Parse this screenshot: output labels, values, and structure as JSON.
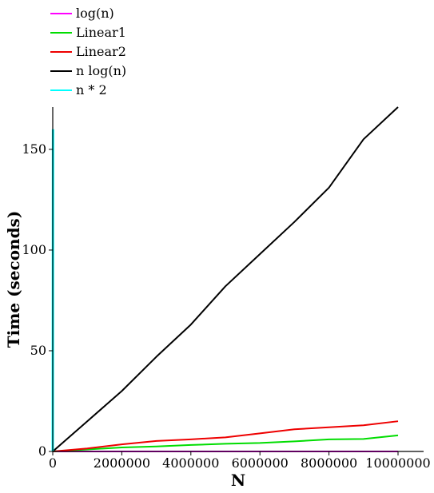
{
  "chart_data": {
    "type": "line",
    "title": "",
    "xlabel": "N",
    "ylabel": "Time (seconds)",
    "xlim": [
      0,
      10000000
    ],
    "ylim": [
      0,
      171
    ],
    "x_ticks": [
      0,
      2000000,
      4000000,
      6000000,
      8000000,
      10000000
    ],
    "x_tick_labels": [
      "0",
      "2000000",
      "4000000",
      "6000000",
      "8000000",
      "10000000"
    ],
    "y_ticks": [
      0,
      50,
      100,
      150
    ],
    "y_tick_labels": [
      "0",
      "50",
      "100",
      "150"
    ],
    "grid": false,
    "legend_position": "top-left",
    "series": [
      {
        "name": "log(n)",
        "color": "#ff00ff",
        "x": [
          0,
          10000000
        ],
        "y": [
          0,
          0
        ]
      },
      {
        "name": "Linear1",
        "color": "#00dd00",
        "x": [
          0,
          1000000,
          2000000,
          3000000,
          4000000,
          5000000,
          6000000,
          7000000,
          8000000,
          9000000,
          10000000
        ],
        "y": [
          0,
          1,
          2,
          2.5,
          3.2,
          3.8,
          4.2,
          5,
          6,
          6.2,
          8
        ]
      },
      {
        "name": "Linear2",
        "color": "#ee0000",
        "x": [
          0,
          1000000,
          2000000,
          3000000,
          4000000,
          5000000,
          6000000,
          7000000,
          8000000,
          9000000,
          10000000
        ],
        "y": [
          0,
          1.5,
          3.5,
          5.2,
          6,
          7,
          9,
          11,
          12,
          13,
          15
        ]
      },
      {
        "name": "n log(n)",
        "color": "#000000",
        "x": [
          0,
          1000000,
          2000000,
          3000000,
          4000000,
          5000000,
          6000000,
          7000000,
          8000000,
          9000000,
          10000000
        ],
        "y": [
          0,
          15,
          30,
          47,
          63,
          82,
          98,
          114,
          131,
          155,
          171
        ]
      },
      {
        "name": "n * 2",
        "color": "#00ffff",
        "x": [
          0,
          800,
          8000
        ],
        "y": [
          0,
          10,
          160
        ]
      }
    ]
  }
}
